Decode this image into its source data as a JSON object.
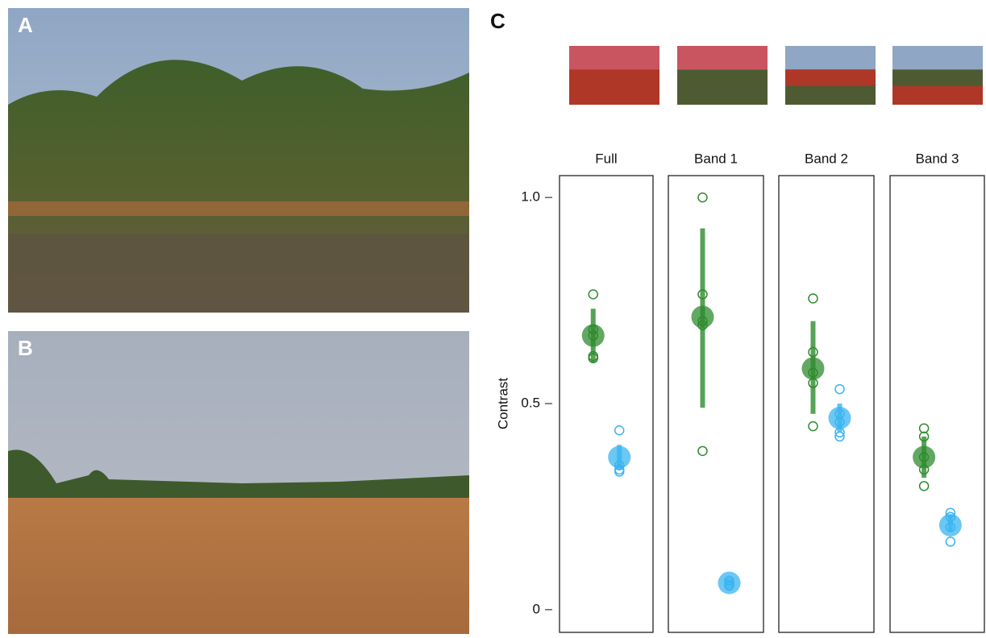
{
  "labels": {
    "a": "A",
    "b": "B"
  },
  "chart_data": {
    "type": "dot",
    "label": "C",
    "y_label": "Contrast",
    "ylim": [
      -0.055,
      1.053
    ],
    "yticks": [
      0,
      0.5,
      {
        "value": 1,
        "label": "1.0"
      }
    ],
    "panels": [
      {
        "title": "Full",
        "groups": [
          {
            "color": "#2e8b2e",
            "mean": 0.665,
            "error": [
              0.6,
              0.73
            ],
            "points": [
              0.765,
              0.68,
              0.665,
              0.615,
              0.61
            ]
          },
          {
            "color": "#3ab4f0",
            "mean": 0.37,
            "error": [
              0.34,
              0.4
            ],
            "points": [
              0.435,
              0.35,
              0.34,
              0.335
            ]
          }
        ]
      },
      {
        "title": "Band 1",
        "groups": [
          {
            "color": "#2e8b2e",
            "mean": 0.71,
            "error": [
              0.49,
              0.925
            ],
            "points": [
              1.0,
              0.765,
              0.7,
              0.69,
              0.385
            ]
          },
          {
            "color": "#3ab4f0",
            "mean": 0.065,
            "error": [
              0.058,
              0.072
            ],
            "points": [
              0.07,
              0.065,
              0.06,
              0.058
            ]
          }
        ]
      },
      {
        "title": "Band 2",
        "groups": [
          {
            "color": "#2e8b2e",
            "mean": 0.585,
            "error": [
              0.475,
              0.7
            ],
            "points": [
              0.755,
              0.625,
              0.575,
              0.55,
              0.445
            ]
          },
          {
            "color": "#3ab4f0",
            "mean": 0.465,
            "error": [
              0.43,
              0.5
            ],
            "points": [
              0.535,
              0.475,
              0.455,
              0.43,
              0.42
            ]
          }
        ]
      },
      {
        "title": "Band 3",
        "groups": [
          {
            "color": "#2e8b2e",
            "mean": 0.37,
            "error": [
              0.32,
              0.42
            ],
            "points": [
              0.44,
              0.42,
              0.37,
              0.34,
              0.3
            ]
          },
          {
            "color": "#3ab4f0",
            "mean": 0.205,
            "error": [
              0.19,
              0.23
            ],
            "points": [
              0.235,
              0.225,
              0.2,
              0.165
            ]
          }
        ]
      }
    ]
  }
}
